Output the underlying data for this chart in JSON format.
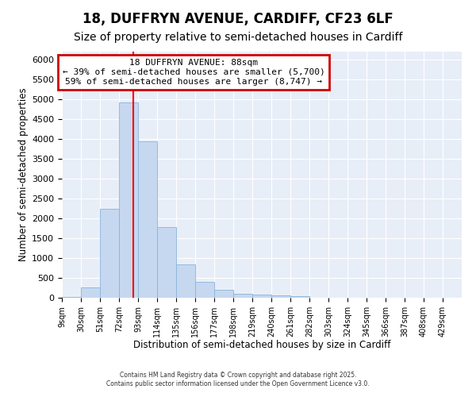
{
  "title1": "18, DUFFRYN AVENUE, CARDIFF, CF23 6LF",
  "title2": "Size of property relative to semi-detached houses in Cardiff",
  "xlabel": "Distribution of semi-detached houses by size in Cardiff",
  "ylabel": "Number of semi-detached properties",
  "bar_labels": [
    "9sqm",
    "30sqm",
    "51sqm",
    "72sqm",
    "93sqm",
    "114sqm",
    "135sqm",
    "156sqm",
    "177sqm",
    "198sqm",
    "219sqm",
    "240sqm",
    "261sqm",
    "282sqm",
    "303sqm",
    "324sqm",
    "345sqm",
    "366sqm",
    "387sqm",
    "408sqm",
    "429sqm"
  ],
  "bar_values": [
    30,
    270,
    2250,
    4920,
    3950,
    1780,
    840,
    400,
    200,
    110,
    80,
    55,
    40,
    5,
    0,
    0,
    0,
    0,
    0,
    0,
    0
  ],
  "bar_color": "#c5d8f0",
  "bar_edge_color": "#8ab4d8",
  "red_line_x": 88,
  "bin_edges": [
    9,
    30,
    51,
    72,
    93,
    114,
    135,
    156,
    177,
    198,
    219,
    240,
    261,
    282,
    303,
    324,
    345,
    366,
    387,
    408,
    429,
    450
  ],
  "annotation_title": "18 DUFFRYN AVENUE: 88sqm",
  "annotation_line1": "← 39% of semi-detached houses are smaller (5,700)",
  "annotation_line2": "59% of semi-detached houses are larger (8,747) →",
  "annotation_box_color": "#ffffff",
  "annotation_box_edge": "#cc0000",
  "ylim": [
    0,
    6200
  ],
  "yticks": [
    0,
    500,
    1000,
    1500,
    2000,
    2500,
    3000,
    3500,
    4000,
    4500,
    5000,
    5500,
    6000
  ],
  "footer1": "Contains HM Land Registry data © Crown copyright and database right 2025.",
  "footer2": "Contains public sector information licensed under the Open Government Licence v3.0.",
  "background_color": "#ffffff",
  "plot_bg_color": "#e8eef8",
  "grid_color": "#ffffff",
  "title1_fontsize": 12,
  "title2_fontsize": 10
}
